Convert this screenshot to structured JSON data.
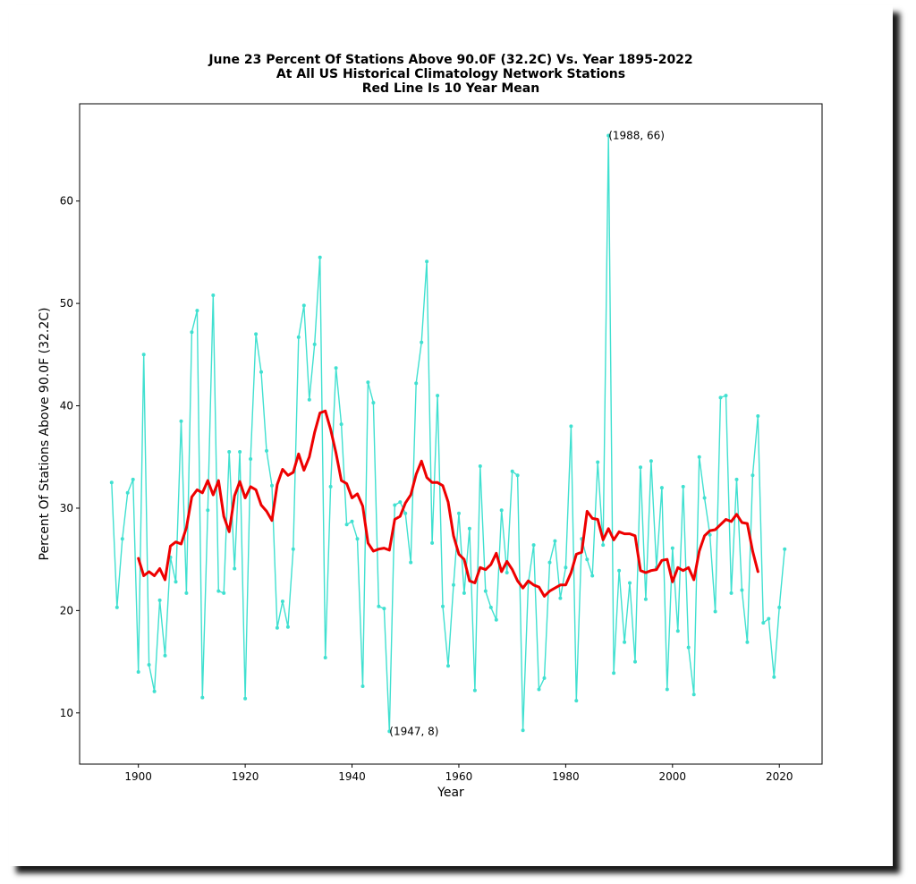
{
  "chart_data": {
    "type": "line",
    "title": [
      "June 23 Percent Of Stations Above 90.0F (32.2C) Vs. Year 1895-2022",
      "At All US Historical Climatology Network Stations",
      "Red Line Is 10 Year Mean"
    ],
    "xlabel": "Year",
    "ylabel": "Percent Of Stations Above 90.0F (32.2C)",
    "xlim": [
      1889,
      2028
    ],
    "ylim": [
      5,
      69.5
    ],
    "xticks": [
      1900,
      1920,
      1940,
      1960,
      1980,
      2000,
      2020
    ],
    "yticks": [
      10,
      20,
      30,
      40,
      50,
      60
    ],
    "grid": false,
    "series": [
      {
        "color": "#40e0d0",
        "marker": "dot",
        "x": [
          1895,
          1896,
          1897,
          1898,
          1899,
          1900,
          1901,
          1902,
          1903,
          1904,
          1905,
          1906,
          1907,
          1908,
          1909,
          1910,
          1911,
          1912,
          1913,
          1914,
          1915,
          1916,
          1917,
          1918,
          1919,
          1920,
          1921,
          1922,
          1923,
          1924,
          1925,
          1926,
          1927,
          1928,
          1929,
          1930,
          1931,
          1932,
          1933,
          1934,
          1935,
          1936,
          1937,
          1938,
          1939,
          1940,
          1941,
          1942,
          1943,
          1944,
          1945,
          1946,
          1947,
          1948,
          1949,
          1950,
          1951,
          1952,
          1953,
          1954,
          1955,
          1956,
          1957,
          1958,
          1959,
          1960,
          1961,
          1962,
          1963,
          1964,
          1965,
          1966,
          1967,
          1968,
          1969,
          1970,
          1971,
          1972,
          1973,
          1974,
          1975,
          1976,
          1977,
          1978,
          1979,
          1980,
          1981,
          1982,
          1983,
          1984,
          1985,
          1986,
          1987,
          1988,
          1989,
          1990,
          1991,
          1992,
          1993,
          1994,
          1995,
          1996,
          1997,
          1998,
          1999,
          2000,
          2001,
          2002,
          2003,
          2004,
          2005,
          2006,
          2007,
          2008,
          2009,
          2010,
          2011,
          2012,
          2013,
          2014,
          2015,
          2016,
          2017,
          2018,
          2019,
          2020,
          2021
        ],
        "y": [
          32.5,
          20.3,
          27,
          31.5,
          32.8,
          14,
          45,
          14.7,
          12.1,
          21,
          15.6,
          25.2,
          22.8,
          38.5,
          21.7,
          47.2,
          49.3,
          11.5,
          29.8,
          50.8,
          21.9,
          21.7,
          35.5,
          24.1,
          35.5,
          11.4,
          34.8,
          47,
          43.3,
          35.6,
          32.2,
          18.3,
          20.9,
          18.4,
          26,
          46.7,
          49.8,
          40.6,
          46,
          54.5,
          15.4,
          32.1,
          43.7,
          38.2,
          28.4,
          28.7,
          27,
          12.6,
          42.3,
          40.3,
          20.4,
          20.2,
          8.2,
          30.3,
          30.6,
          29.5,
          24.7,
          42.2,
          46.2,
          54.1,
          26.6,
          41,
          20.4,
          14.6,
          22.5,
          29.5,
          21.7,
          28,
          12.2,
          34.1,
          21.9,
          20.3,
          19.1,
          29.8,
          23.7,
          33.6,
          33.2,
          8.3,
          22.7,
          26.4,
          12.3,
          13.4,
          24.7,
          26.8,
          21.2,
          24.2,
          38,
          11.2,
          27,
          25,
          23.4,
          34.5,
          26.4,
          66.4,
          13.9,
          23.9,
          16.9,
          22.7,
          15,
          34,
          21.1,
          34.6,
          24.2,
          32,
          12.3,
          26.1,
          18,
          32.1,
          16.4,
          11.8,
          35,
          31,
          27.4,
          19.9,
          40.8,
          41,
          21.7,
          32.8,
          22,
          16.9,
          33.2,
          39,
          18.8,
          19.2,
          13.5,
          20.3,
          26
        ]
      },
      {
        "name": "10 Year Mean",
        "color": "#ee0000",
        "x": [
          1900,
          1901,
          1902,
          1903,
          1904,
          1905,
          1906,
          1907,
          1908,
          1909,
          1910,
          1911,
          1912,
          1913,
          1914,
          1915,
          1916,
          1917,
          1918,
          1919,
          1920,
          1921,
          1922,
          1923,
          1924,
          1925,
          1926,
          1927,
          1928,
          1929,
          1930,
          1931,
          1932,
          1933,
          1934,
          1935,
          1936,
          1937,
          1938,
          1939,
          1940,
          1941,
          1942,
          1943,
          1944,
          1945,
          1946,
          1947,
          1948,
          1949,
          1950,
          1951,
          1952,
          1953,
          1954,
          1955,
          1956,
          1957,
          1958,
          1959,
          1960,
          1961,
          1962,
          1963,
          1964,
          1965,
          1966,
          1967,
          1968,
          1969,
          1970,
          1971,
          1972,
          1973,
          1974,
          1975,
          1976,
          1977,
          1978,
          1979,
          1980,
          1981,
          1982,
          1983,
          1984,
          1985,
          1986,
          1987,
          1988,
          1989,
          1990,
          1991,
          1992,
          1993,
          1994,
          1995,
          1996,
          1997,
          1998,
          1999,
          2000,
          2001,
          2002,
          2003,
          2004,
          2005,
          2006,
          2007,
          2008,
          2009,
          2010,
          2011,
          2012,
          2013,
          2014,
          2015,
          2016
        ],
        "y": [
          25.1,
          23.4,
          23.8,
          23.4,
          24.1,
          23,
          26.3,
          26.7,
          26.5,
          28.1,
          31.1,
          31.8,
          31.5,
          32.7,
          31.3,
          32.7,
          29.2,
          27.7,
          31.2,
          32.6,
          31,
          32.1,
          31.8,
          30.3,
          29.7,
          28.8,
          32.3,
          33.8,
          33.2,
          33.5,
          35.3,
          33.7,
          35,
          37.4,
          39.3,
          39.5,
          37.7,
          35.4,
          32.7,
          32.4,
          31,
          31.4,
          30.2,
          26.6,
          25.8,
          26,
          26.1,
          25.9,
          28.9,
          29.2,
          30.5,
          31.3,
          33.3,
          34.6,
          33,
          32.5,
          32.5,
          32.2,
          30.6,
          27.3,
          25.5,
          25,
          22.9,
          22.7,
          24.2,
          24,
          24.5,
          25.6,
          23.8,
          24.8,
          24,
          22.9,
          22.2,
          22.9,
          22.5,
          22.3,
          21.4,
          21.9,
          22.2,
          22.5,
          22.5,
          23.7,
          25.5,
          25.7,
          29.7,
          29,
          28.9,
          26.9,
          28,
          26.9,
          27.7,
          27.5,
          27.5,
          27.3,
          23.9,
          23.7,
          23.9,
          24,
          24.9,
          25,
          22.8,
          24.2,
          23.9,
          24.2,
          23,
          25.8,
          27.3,
          27.8,
          27.9,
          28.4,
          28.9,
          28.7,
          29.4,
          28.6,
          28.5,
          25.8,
          23.8
        ]
      }
    ],
    "annotations": [
      {
        "text": "(1988, 66)",
        "x": 1988,
        "y": 66.4
      },
      {
        "text": "(1947, 8)",
        "x": 1947,
        "y": 8.2
      }
    ]
  }
}
